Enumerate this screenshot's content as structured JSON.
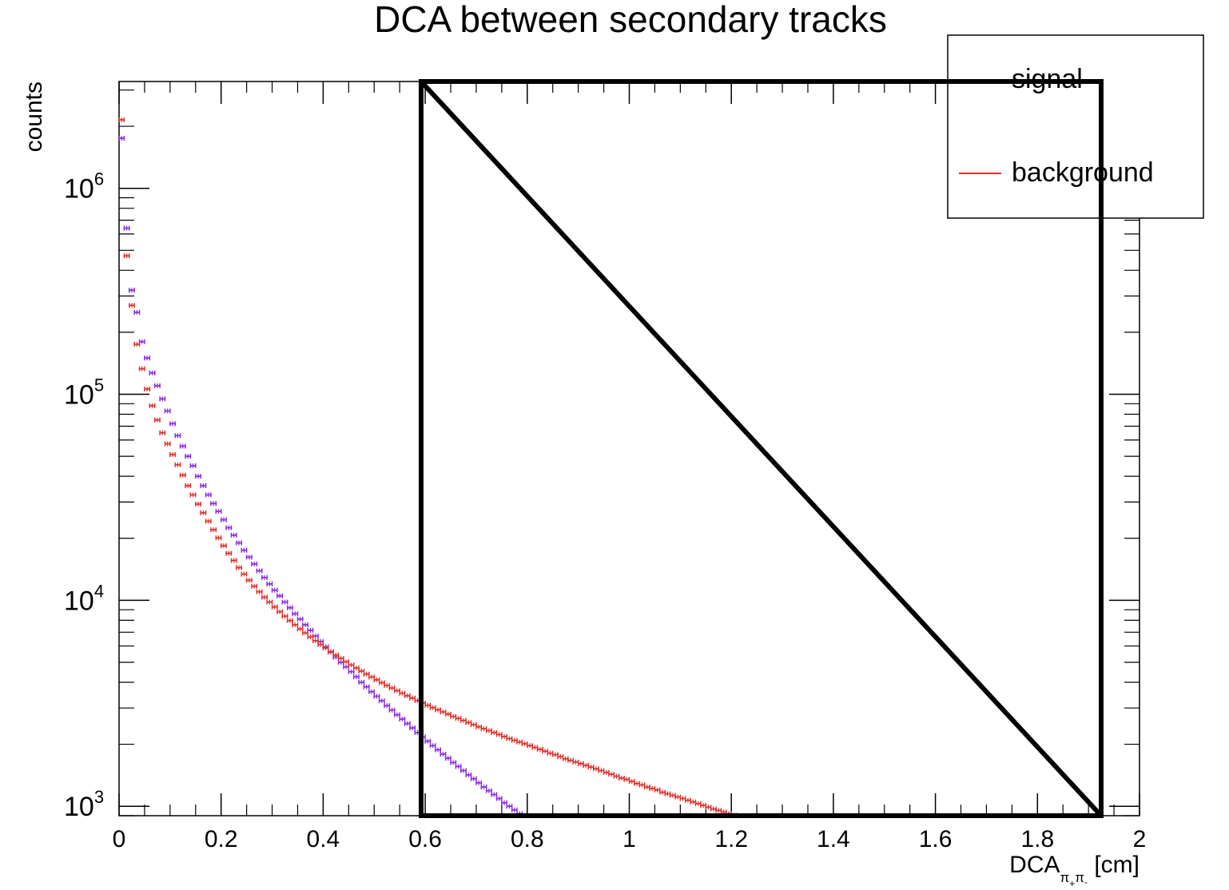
{
  "chart_data": {
    "type": "scatter",
    "title": "DCA between secondary tracks",
    "xlabel": {
      "main": "DCA",
      "sub1": "π",
      "sup1": "+",
      "sub2": "π",
      "sup2": "-",
      "unit": " [cm]"
    },
    "ylabel": "counts",
    "xlim": [
      0,
      2
    ],
    "ylim": [
      900,
      3300000
    ],
    "log_y": true,
    "grid": false,
    "legend_position": "top-right",
    "x_ticks": [
      {
        "v": 0,
        "label": "0"
      },
      {
        "v": 0.2,
        "label": "0.2"
      },
      {
        "v": 0.4,
        "label": "0.4"
      },
      {
        "v": 0.6,
        "label": "0.6"
      },
      {
        "v": 0.8,
        "label": "0.8"
      },
      {
        "v": 1,
        "label": "1"
      },
      {
        "v": 1.2,
        "label": "1.2"
      },
      {
        "v": 1.4,
        "label": "1.4"
      },
      {
        "v": 1.6,
        "label": "1.6"
      },
      {
        "v": 1.8,
        "label": "1.8"
      },
      {
        "v": 2,
        "label": "2"
      }
    ],
    "y_ticks": [
      {
        "v": 1000,
        "base": "10",
        "exp": "3"
      },
      {
        "v": 10000,
        "base": "10",
        "exp": "4"
      },
      {
        "v": 100000,
        "base": "10",
        "exp": "5"
      },
      {
        "v": 1000000,
        "base": "10",
        "exp": "6"
      }
    ],
    "bin_width": 0.01,
    "series": [
      {
        "name": "signal",
        "color": "#8a2be2",
        "marker": "error-bar",
        "points": [
          [
            0.005,
            1750000
          ],
          [
            0.015,
            640000
          ],
          [
            0.025,
            320000
          ],
          [
            0.035,
            250000
          ],
          [
            0.045,
            180000
          ],
          [
            0.055,
            150000
          ],
          [
            0.065,
            127000
          ],
          [
            0.075,
            110000
          ],
          [
            0.085,
            95000
          ],
          [
            0.095,
            83000
          ],
          [
            0.105,
            72000
          ],
          [
            0.115,
            63000
          ],
          [
            0.125,
            56000
          ],
          [
            0.135,
            50000
          ],
          [
            0.145,
            45000
          ],
          [
            0.155,
            40000
          ],
          [
            0.165,
            36000
          ],
          [
            0.175,
            32500
          ],
          [
            0.185,
            29500
          ],
          [
            0.195,
            27000
          ],
          [
            0.205,
            24600
          ],
          [
            0.215,
            22500
          ],
          [
            0.225,
            20700
          ],
          [
            0.235,
            19000
          ],
          [
            0.245,
            17500
          ],
          [
            0.255,
            16200
          ],
          [
            0.265,
            15000
          ],
          [
            0.275,
            13900
          ],
          [
            0.285,
            12900
          ],
          [
            0.295,
            12000
          ],
          [
            0.305,
            11200
          ],
          [
            0.315,
            10500
          ],
          [
            0.325,
            9800
          ],
          [
            0.335,
            9200
          ],
          [
            0.345,
            8600
          ],
          [
            0.355,
            8100
          ],
          [
            0.365,
            7600
          ],
          [
            0.375,
            7150
          ],
          [
            0.385,
            6700
          ],
          [
            0.395,
            6300
          ],
          [
            0.405,
            5950
          ],
          [
            0.415,
            5600
          ],
          [
            0.425,
            5300
          ],
          [
            0.435,
            5000
          ],
          [
            0.445,
            4750
          ],
          [
            0.455,
            4500
          ],
          [
            0.465,
            4250
          ],
          [
            0.475,
            4000
          ],
          [
            0.485,
            3800
          ],
          [
            0.495,
            3600
          ],
          [
            0.505,
            3420
          ],
          [
            0.515,
            3250
          ],
          [
            0.525,
            3080
          ],
          [
            0.535,
            2930
          ],
          [
            0.545,
            2780
          ],
          [
            0.555,
            2650
          ],
          [
            0.565,
            2520
          ],
          [
            0.575,
            2400
          ],
          [
            0.585,
            2280
          ],
          [
            0.595,
            2170
          ],
          [
            0.605,
            2070
          ],
          [
            0.615,
            1970
          ],
          [
            0.625,
            1880
          ],
          [
            0.635,
            1790
          ],
          [
            0.645,
            1710
          ],
          [
            0.655,
            1630
          ],
          [
            0.665,
            1560
          ],
          [
            0.675,
            1490
          ],
          [
            0.685,
            1420
          ],
          [
            0.695,
            1360
          ],
          [
            0.705,
            1300
          ],
          [
            0.715,
            1240
          ],
          [
            0.725,
            1190
          ],
          [
            0.735,
            1140
          ],
          [
            0.745,
            1090
          ],
          [
            0.755,
            1040
          ],
          [
            0.765,
            1000
          ],
          [
            0.775,
            960
          ],
          [
            0.785,
            920
          ]
        ]
      },
      {
        "name": "background",
        "color": "#e0302a",
        "marker": "error-bar",
        "points": [
          [
            0.005,
            2150000
          ],
          [
            0.015,
            470000
          ],
          [
            0.025,
            270000
          ],
          [
            0.035,
            175000
          ],
          [
            0.045,
            133000
          ],
          [
            0.055,
            106000
          ],
          [
            0.065,
            88000
          ],
          [
            0.075,
            75000
          ],
          [
            0.085,
            65000
          ],
          [
            0.095,
            57500
          ],
          [
            0.105,
            51000
          ],
          [
            0.115,
            45500
          ],
          [
            0.125,
            40500
          ],
          [
            0.135,
            36000
          ],
          [
            0.145,
            32500
          ],
          [
            0.155,
            29300
          ],
          [
            0.165,
            26600
          ],
          [
            0.175,
            24200
          ],
          [
            0.185,
            22000
          ],
          [
            0.195,
            20100
          ],
          [
            0.205,
            18400
          ],
          [
            0.215,
            16900
          ],
          [
            0.225,
            15600
          ],
          [
            0.235,
            14400
          ],
          [
            0.245,
            13400
          ],
          [
            0.255,
            12500
          ],
          [
            0.265,
            11700
          ],
          [
            0.275,
            11000
          ],
          [
            0.285,
            10350
          ],
          [
            0.295,
            9800
          ],
          [
            0.305,
            9280
          ],
          [
            0.315,
            8800
          ],
          [
            0.325,
            8370
          ],
          [
            0.335,
            7970
          ],
          [
            0.345,
            7600
          ],
          [
            0.355,
            7260
          ],
          [
            0.365,
            6940
          ],
          [
            0.375,
            6640
          ],
          [
            0.385,
            6360
          ],
          [
            0.395,
            6100
          ],
          [
            0.405,
            5860
          ],
          [
            0.415,
            5630
          ],
          [
            0.425,
            5420
          ],
          [
            0.435,
            5220
          ],
          [
            0.445,
            5030
          ],
          [
            0.455,
            4850
          ],
          [
            0.465,
            4690
          ],
          [
            0.475,
            4530
          ],
          [
            0.485,
            4380
          ],
          [
            0.495,
            4240
          ],
          [
            0.505,
            4110
          ],
          [
            0.515,
            3980
          ],
          [
            0.525,
            3860
          ],
          [
            0.535,
            3750
          ],
          [
            0.545,
            3640
          ],
          [
            0.555,
            3540
          ],
          [
            0.565,
            3440
          ],
          [
            0.575,
            3350
          ],
          [
            0.585,
            3260
          ],
          [
            0.595,
            3170
          ],
          [
            0.605,
            3090
          ],
          [
            0.615,
            3010
          ],
          [
            0.625,
            2940
          ],
          [
            0.635,
            2870
          ],
          [
            0.645,
            2800
          ],
          [
            0.655,
            2730
          ],
          [
            0.665,
            2670
          ],
          [
            0.675,
            2610
          ],
          [
            0.685,
            2550
          ],
          [
            0.695,
            2490
          ],
          [
            0.705,
            2430
          ],
          [
            0.715,
            2380
          ],
          [
            0.725,
            2330
          ],
          [
            0.735,
            2280
          ],
          [
            0.745,
            2230
          ],
          [
            0.755,
            2180
          ],
          [
            0.765,
            2130
          ],
          [
            0.775,
            2090
          ],
          [
            0.785,
            2050
          ],
          [
            0.795,
            2010
          ],
          [
            0.805,
            1970
          ],
          [
            0.815,
            1930
          ],
          [
            0.825,
            1890
          ],
          [
            0.835,
            1850
          ],
          [
            0.845,
            1810
          ],
          [
            0.855,
            1780
          ],
          [
            0.865,
            1740
          ],
          [
            0.875,
            1700
          ],
          [
            0.885,
            1670
          ],
          [
            0.895,
            1640
          ],
          [
            0.905,
            1610
          ],
          [
            0.915,
            1580
          ],
          [
            0.925,
            1550
          ],
          [
            0.935,
            1520
          ],
          [
            0.945,
            1490
          ],
          [
            0.955,
            1460
          ],
          [
            0.965,
            1430
          ],
          [
            0.975,
            1400
          ],
          [
            0.985,
            1370
          ],
          [
            0.995,
            1350
          ],
          [
            1.005,
            1320
          ],
          [
            1.015,
            1290
          ],
          [
            1.025,
            1270
          ],
          [
            1.035,
            1240
          ],
          [
            1.045,
            1220
          ],
          [
            1.055,
            1200
          ],
          [
            1.065,
            1170
          ],
          [
            1.075,
            1150
          ],
          [
            1.085,
            1130
          ],
          [
            1.095,
            1110
          ],
          [
            1.105,
            1090
          ],
          [
            1.115,
            1070
          ],
          [
            1.125,
            1050
          ],
          [
            1.135,
            1030
          ],
          [
            1.145,
            1010
          ],
          [
            1.155,
            990
          ],
          [
            1.165,
            970
          ],
          [
            1.175,
            955
          ],
          [
            1.185,
            938
          ],
          [
            1.195,
            921
          ],
          [
            1.205,
            905
          ]
        ]
      }
    ],
    "legend": [
      {
        "label": "signal",
        "color": "#8a2be2",
        "has_line": false
      },
      {
        "label": "background",
        "color": "#e0302a",
        "has_line": true
      }
    ]
  }
}
